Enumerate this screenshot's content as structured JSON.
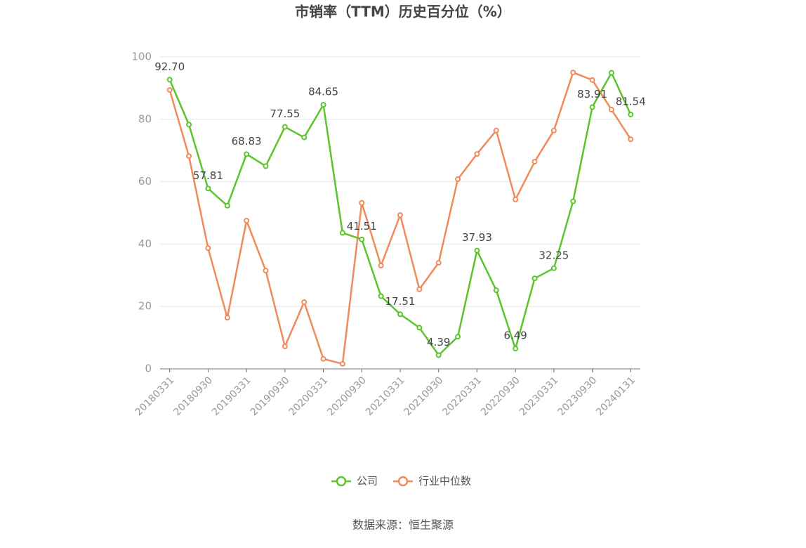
{
  "chart_data": {
    "type": "line",
    "title": "市销率（TTM）历史百分位（%）",
    "source": "数据来源：恒生聚源",
    "categories": [
      "20180331",
      null,
      "20180930",
      null,
      "20190331",
      null,
      "20190930",
      null,
      "20200331",
      null,
      "20200930",
      null,
      "20210331",
      null,
      "20210930",
      null,
      "20220331",
      null,
      "20220930",
      null,
      "20230331",
      null,
      "20230930",
      null,
      "20240131"
    ],
    "series": [
      {
        "name": "公司",
        "color": "#5cc42c",
        "values": [
          92.7,
          78.3,
          57.81,
          52.3,
          68.83,
          65.0,
          77.55,
          74.2,
          84.65,
          43.6,
          41.51,
          23.3,
          17.51,
          13.2,
          4.39,
          10.3,
          37.93,
          25.2,
          6.49,
          29.0,
          32.25,
          53.7,
          83.91,
          94.9,
          81.54
        ],
        "value_labels": [
          "92.70",
          null,
          "57.81",
          null,
          "68.83",
          null,
          "77.55",
          null,
          "84.65",
          null,
          "41.51",
          null,
          "17.51",
          null,
          "4.39",
          null,
          "37.93",
          null,
          "6.49",
          null,
          "32.25",
          null,
          "83.91",
          null,
          "81.54"
        ]
      },
      {
        "name": "行业中位数",
        "color": "#f08a5b",
        "values": [
          89.4,
          68.2,
          38.7,
          16.4,
          47.5,
          31.5,
          7.2,
          21.4,
          3.2,
          1.6,
          53.2,
          33.1,
          49.3,
          25.5,
          34.0,
          60.8,
          68.9,
          76.4,
          54.3,
          66.4,
          76.4,
          95.0,
          92.6,
          83.1,
          73.6
        ]
      }
    ],
    "ylim": [
      0,
      100
    ],
    "yticks": [
      0,
      20,
      40,
      60,
      80,
      100
    ],
    "grid": true
  }
}
